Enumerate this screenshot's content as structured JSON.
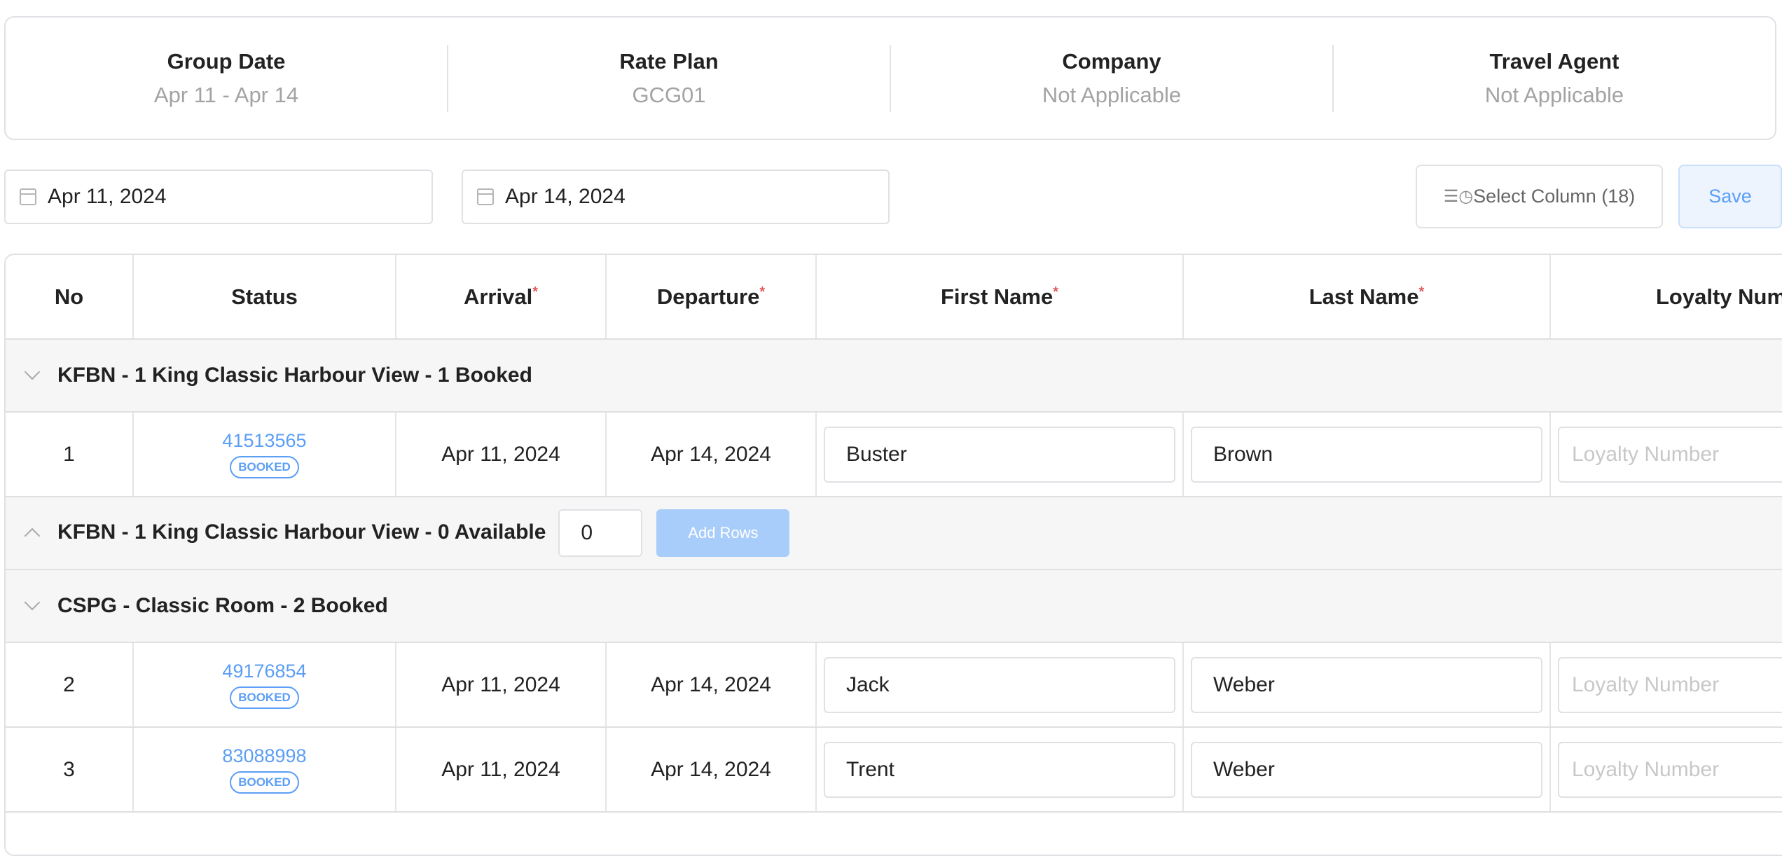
{
  "summary": [
    {
      "label": "Group Date",
      "value": "Apr 11 - Apr 14"
    },
    {
      "label": "Rate Plan",
      "value": "GCG01"
    },
    {
      "label": "Company",
      "value": "Not Applicable"
    },
    {
      "label": "Travel Agent",
      "value": "Not Applicable"
    }
  ],
  "filters": {
    "start_date": "Apr 11, 2024",
    "end_date": "Apr 14, 2024"
  },
  "toolbar": {
    "select_column": "Select Column (18)",
    "save": "Save"
  },
  "columns": [
    "No",
    "Status",
    "Arrival",
    "Departure",
    "First Name",
    "Last Name",
    "Loyalty Num"
  ],
  "groups": [
    {
      "title": "KFBN - 1 King Classic Harbour View - 1 Booked"
    },
    {
      "title": "KFBN - 1 King Classic Harbour View - 0 Available",
      "count": "0",
      "add_label": "Add Rows"
    },
    {
      "title": "CSPG - Classic Room - 2 Booked"
    }
  ],
  "rows": [
    {
      "no": "1",
      "conf": "41513565",
      "status": "BOOKED",
      "arrival": "Apr 11, 2024",
      "departure": "Apr 14, 2024",
      "first": "Buster",
      "last": "Brown",
      "loyalty_placeholder": "Loyalty Number"
    },
    {
      "no": "2",
      "conf": "49176854",
      "status": "BOOKED",
      "arrival": "Apr 11, 2024",
      "departure": "Apr 14, 2024",
      "first": "Jack",
      "last": "Weber",
      "loyalty_placeholder": "Loyalty Number"
    },
    {
      "no": "3",
      "conf": "83088998",
      "status": "BOOKED",
      "arrival": "Apr 11, 2024",
      "departure": "Apr 14, 2024",
      "first": "Trent",
      "last": "Weber",
      "loyalty_placeholder": "Loyalty Number"
    }
  ],
  "colors": {
    "accent": "#5b9ef5",
    "required": "#e05a5a"
  }
}
